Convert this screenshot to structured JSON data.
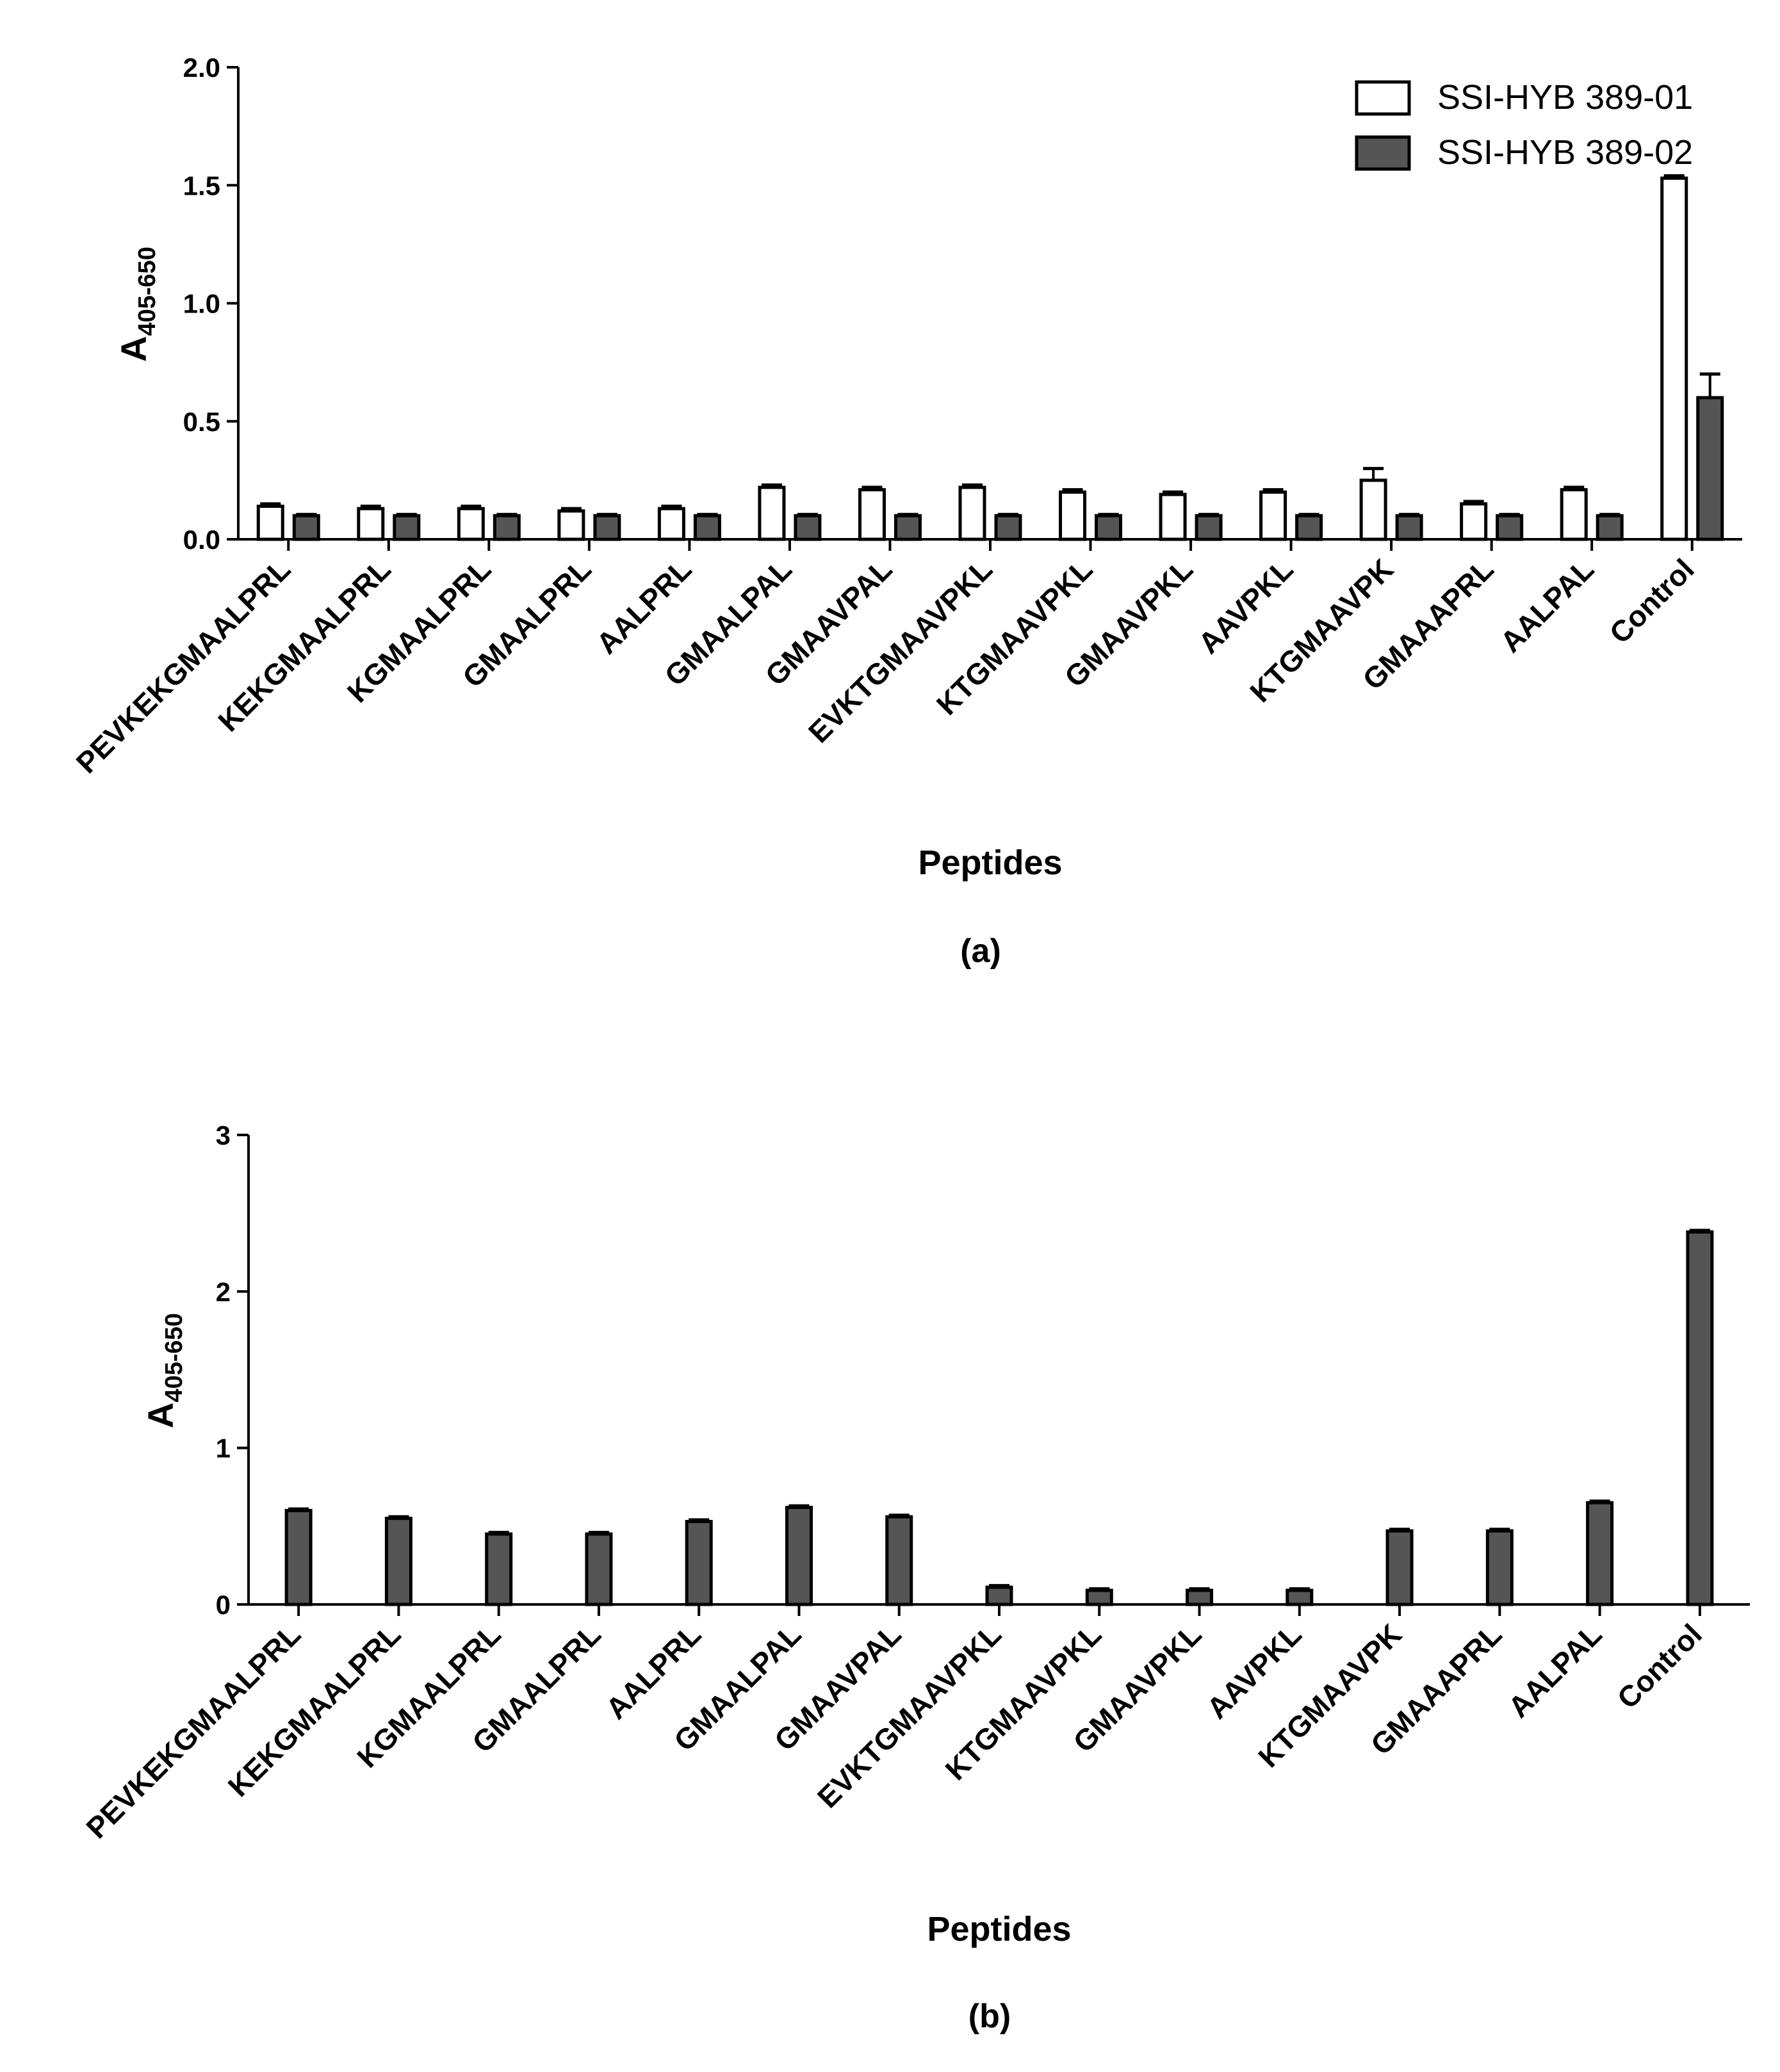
{
  "chart_data": [
    {
      "type": "bar",
      "panel_label": "(a)",
      "xlabel": "Peptides",
      "ylabel_main": "A",
      "ylabel_sub": "405-650",
      "ylim": [
        0,
        2.0
      ],
      "yticks": [
        "0.0",
        "0.5",
        "1.0",
        "1.5",
        "2.0"
      ],
      "legend_position": "top-right",
      "categories": [
        "PEVKEKGMAALPRL",
        "KEKGMAALPRL",
        "KGMAALPRL",
        "GMAALPRL",
        "AALPRL",
        "GMAALPAL",
        "GMAAVPAL",
        "EVKTGMAAVPKL",
        "KTGMAAVPKL",
        "GMAAVPKL",
        "AAVPKL",
        "KTGMAAVPK",
        "GMAAAPRL",
        "AALPAL",
        "Control"
      ],
      "series": [
        {
          "name": "SSI-HYB 389-01",
          "fill": "#ffffff",
          "values": [
            0.14,
            0.13,
            0.13,
            0.12,
            0.13,
            0.22,
            0.21,
            0.22,
            0.2,
            0.19,
            0.2,
            0.25,
            0.15,
            0.21,
            1.53
          ],
          "errors": [
            0.01,
            0.01,
            0.01,
            0.01,
            0.01,
            0.01,
            0.01,
            0.01,
            0.01,
            0.01,
            0.01,
            0.05,
            0.01,
            0.01,
            0.01
          ]
        },
        {
          "name": "SSI-HYB 389-02",
          "fill": "#555555",
          "values": [
            0.1,
            0.1,
            0.1,
            0.1,
            0.1,
            0.1,
            0.1,
            0.1,
            0.1,
            0.1,
            0.1,
            0.1,
            0.1,
            0.1,
            0.6
          ],
          "errors": [
            0.005,
            0.005,
            0.005,
            0.005,
            0.005,
            0.005,
            0.005,
            0.005,
            0.005,
            0.005,
            0.005,
            0.005,
            0.005,
            0.005,
            0.1
          ]
        }
      ]
    },
    {
      "type": "bar",
      "panel_label": "(b)",
      "xlabel": "Peptides",
      "ylabel_main": "A",
      "ylabel_sub": "405-650",
      "ylim": [
        0,
        3
      ],
      "yticks": [
        "0",
        "1",
        "2",
        "3"
      ],
      "categories": [
        "PEVKEKGMAALPRL",
        "KEKGMAALPRL",
        "KGMAALPRL",
        "GMAALPRL",
        "AALPRL",
        "GMAALPAL",
        "GMAAVPAL",
        "EVKTGMAAVPKL",
        "KTGMAAVPKL",
        "GMAAVPKL",
        "AAVPKL",
        "KTGMAAVPK",
        "GMAAAPRL",
        "AALPAL",
        "Control"
      ],
      "series": [
        {
          "name": "",
          "fill": "#555555",
          "values": [
            0.6,
            0.55,
            0.45,
            0.45,
            0.53,
            0.62,
            0.56,
            0.11,
            0.09,
            0.09,
            0.09,
            0.47,
            0.47,
            0.65,
            2.38
          ],
          "errors": [
            0.01,
            0.01,
            0.01,
            0.01,
            0.01,
            0.01,
            0.01,
            0.01,
            0.01,
            0.01,
            0.01,
            0.01,
            0.01,
            0.01,
            0.01
          ]
        }
      ]
    }
  ]
}
